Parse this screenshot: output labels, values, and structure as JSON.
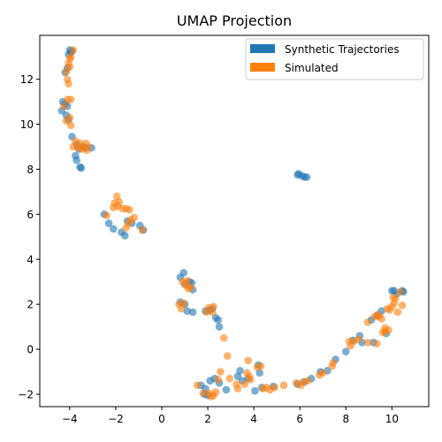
{
  "chart_data": {
    "type": "scatter",
    "title": "UMAP Projection",
    "xlabel": "",
    "ylabel": "",
    "xlim": [
      -5.3,
      11.6
    ],
    "ylim": [
      -2.55,
      13.95
    ],
    "xticks": [
      -4,
      -2,
      0,
      2,
      4,
      6,
      8,
      10
    ],
    "yticks": [
      -2,
      0,
      2,
      4,
      6,
      8,
      10,
      12
    ],
    "grid": false,
    "legend_position": "upper right",
    "series": [
      {
        "name": "Synthetic Trajectories",
        "color": "#1f77b4",
        "points": [
          [
            -4.0,
            13.3
          ],
          [
            -3.95,
            13.2
          ],
          [
            -4.05,
            13.1
          ],
          [
            -3.9,
            13.25
          ],
          [
            -4.1,
            12.5
          ],
          [
            -4.2,
            12.3
          ],
          [
            -4.3,
            11.0
          ],
          [
            -4.2,
            10.9
          ],
          [
            -4.1,
            10.8
          ],
          [
            -4.35,
            10.6
          ],
          [
            -4.15,
            10.4
          ],
          [
            -4.05,
            10.2
          ],
          [
            -3.9,
            9.45
          ],
          [
            -3.7,
            9.1
          ],
          [
            -3.6,
            8.9
          ],
          [
            -3.75,
            8.6
          ],
          [
            -3.7,
            8.4
          ],
          [
            -3.55,
            8.1
          ],
          [
            -3.5,
            8.05
          ],
          [
            -3.3,
            8.95
          ],
          [
            -3.05,
            8.95
          ],
          [
            -3.4,
            9.0
          ],
          [
            -2.5,
            6.0
          ],
          [
            -2.3,
            5.6
          ],
          [
            -2.1,
            5.35
          ],
          [
            -1.75,
            5.2
          ],
          [
            -1.6,
            5.05
          ],
          [
            -1.3,
            5.6
          ],
          [
            -0.95,
            5.5
          ],
          [
            -0.8,
            5.3
          ],
          [
            -1.5,
            5.7
          ],
          [
            5.95,
            7.8
          ],
          [
            6.1,
            7.7
          ],
          [
            6.3,
            7.65
          ],
          [
            6.2,
            7.65
          ],
          [
            5.9,
            7.75
          ],
          [
            0.8,
            3.2
          ],
          [
            0.95,
            3.4
          ],
          [
            1.0,
            2.9
          ],
          [
            1.2,
            3.0
          ],
          [
            1.3,
            2.95
          ],
          [
            1.35,
            2.65
          ],
          [
            0.8,
            2.1
          ],
          [
            1.0,
            2.0
          ],
          [
            1.1,
            1.7
          ],
          [
            1.35,
            1.65
          ],
          [
            1.9,
            1.7
          ],
          [
            2.1,
            1.75
          ],
          [
            2.2,
            1.8
          ],
          [
            2.35,
            1.4
          ],
          [
            2.45,
            1.3
          ],
          [
            2.5,
            1.0
          ],
          [
            1.7,
            -1.6
          ],
          [
            1.85,
            -2.0
          ],
          [
            2.0,
            -2.05
          ],
          [
            1.9,
            -1.75
          ],
          [
            2.1,
            -1.4
          ],
          [
            2.3,
            -1.3
          ],
          [
            2.5,
            -1.5
          ],
          [
            2.8,
            -1.8
          ],
          [
            3.3,
            -1.2
          ],
          [
            3.4,
            -0.95
          ],
          [
            3.5,
            -1.4
          ],
          [
            3.75,
            -1.3
          ],
          [
            4.2,
            -0.7
          ],
          [
            4.25,
            -1.05
          ],
          [
            4.05,
            -1.85
          ],
          [
            4.35,
            -1.7
          ],
          [
            4.85,
            -1.65
          ],
          [
            5.9,
            -1.55
          ],
          [
            6.2,
            -1.45
          ],
          [
            6.5,
            -1.3
          ],
          [
            6.9,
            -1.0
          ],
          [
            7.2,
            -0.95
          ],
          [
            7.55,
            -0.45
          ],
          [
            8.0,
            -0.1
          ],
          [
            8.3,
            0.4
          ],
          [
            8.6,
            0.6
          ],
          [
            8.7,
            0.3
          ],
          [
            9.1,
            1.3
          ],
          [
            9.35,
            1.5
          ],
          [
            9.55,
            1.7
          ],
          [
            9.2,
            0.3
          ],
          [
            9.75,
            0.7
          ],
          [
            10.0,
            2.6
          ],
          [
            10.1,
            2.6
          ],
          [
            10.2,
            2.45
          ],
          [
            10.45,
            2.6
          ],
          [
            10.5,
            2.55
          ]
        ]
      },
      {
        "name": "Simulated",
        "color": "#ff7f0e",
        "points": [
          [
            -3.85,
            13.3
          ],
          [
            -3.95,
            13.0
          ],
          [
            -4.0,
            12.9
          ],
          [
            -4.05,
            12.7
          ],
          [
            -4.15,
            12.35
          ],
          [
            -4.0,
            12.55
          ],
          [
            -4.1,
            12.0
          ],
          [
            -4.05,
            11.8
          ],
          [
            -4.1,
            11.1
          ],
          [
            -3.95,
            11.1
          ],
          [
            -4.25,
            10.8
          ],
          [
            -4.0,
            10.3
          ],
          [
            -4.15,
            10.15
          ],
          [
            -3.95,
            9.95
          ],
          [
            -3.75,
            9.25
          ],
          [
            -3.55,
            9.15
          ],
          [
            -3.5,
            9.0
          ],
          [
            -3.3,
            9.15
          ],
          [
            -3.2,
            9.0
          ],
          [
            -3.45,
            8.9
          ],
          [
            -3.65,
            8.95
          ],
          [
            -3.25,
            8.85
          ],
          [
            -3.85,
            9.0
          ],
          [
            -2.4,
            5.95
          ],
          [
            -2.05,
            6.5
          ],
          [
            -1.95,
            6.8
          ],
          [
            -1.85,
            6.55
          ],
          [
            -1.7,
            6.25
          ],
          [
            -1.55,
            6.25
          ],
          [
            -1.45,
            5.6
          ],
          [
            -1.35,
            5.75
          ],
          [
            -1.2,
            5.85
          ],
          [
            -1.4,
            6.2
          ],
          [
            -1.9,
            6.35
          ],
          [
            -1.55,
            5.4
          ],
          [
            -0.85,
            5.3
          ],
          [
            -2.1,
            6.3
          ],
          [
            0.75,
            2.0
          ],
          [
            0.9,
            3.0
          ],
          [
            0.95,
            2.05
          ],
          [
            1.05,
            2.85
          ],
          [
            1.1,
            3.05
          ],
          [
            1.15,
            2.7
          ],
          [
            1.25,
            2.75
          ],
          [
            0.85,
            1.8
          ],
          [
            1.95,
            1.65
          ],
          [
            2.05,
            1.85
          ],
          [
            2.25,
            1.9
          ],
          [
            2.2,
            1.65
          ],
          [
            2.7,
            0.5
          ],
          [
            2.85,
            -0.3
          ],
          [
            1.55,
            -1.6
          ],
          [
            1.8,
            -1.95
          ],
          [
            2.05,
            -1.95
          ],
          [
            2.15,
            -2.1
          ],
          [
            2.25,
            -2.05
          ],
          [
            2.35,
            -1.9
          ],
          [
            2.45,
            -1.35
          ],
          [
            2.55,
            -1.0
          ],
          [
            2.95,
            -1.3
          ],
          [
            3.25,
            -1.55
          ],
          [
            3.3,
            -1.75
          ],
          [
            3.6,
            -1.55
          ],
          [
            3.7,
            -1.05
          ],
          [
            3.75,
            -0.5
          ],
          [
            3.8,
            -1.2
          ],
          [
            3.85,
            -1.35
          ],
          [
            4.15,
            -0.8
          ],
          [
            4.3,
            -0.75
          ],
          [
            4.4,
            -1.75
          ],
          [
            4.55,
            -1.7
          ],
          [
            4.7,
            -1.8
          ],
          [
            4.9,
            -1.7
          ],
          [
            5.3,
            -1.6
          ],
          [
            5.85,
            -1.5
          ],
          [
            6.05,
            -1.6
          ],
          [
            6.15,
            -1.45
          ],
          [
            6.35,
            -1.4
          ],
          [
            6.85,
            -1.15
          ],
          [
            7.0,
            -1.05
          ],
          [
            7.4,
            -0.75
          ],
          [
            7.45,
            -0.6
          ],
          [
            8.2,
            0.15
          ],
          [
            8.15,
            0.35
          ],
          [
            8.35,
            0.35
          ],
          [
            8.55,
            0.45
          ],
          [
            8.95,
            0.3
          ],
          [
            8.95,
            1.2
          ],
          [
            9.25,
            1.45
          ],
          [
            9.4,
            1.55
          ],
          [
            9.45,
            1.45
          ],
          [
            9.55,
            1.35
          ],
          [
            9.35,
            0.25
          ],
          [
            9.6,
            0.75
          ],
          [
            9.7,
            0.8
          ],
          [
            9.7,
            0.95
          ],
          [
            9.8,
            1.8
          ],
          [
            9.9,
            1.75
          ],
          [
            10.0,
            1.9
          ],
          [
            10.05,
            2.3
          ],
          [
            10.15,
            2.25
          ],
          [
            10.25,
            1.65
          ],
          [
            10.45,
            1.95
          ],
          [
            10.35,
            2.55
          ],
          [
            10.1,
            2.05
          ],
          [
            9.85,
            0.85
          ]
        ]
      }
    ]
  }
}
